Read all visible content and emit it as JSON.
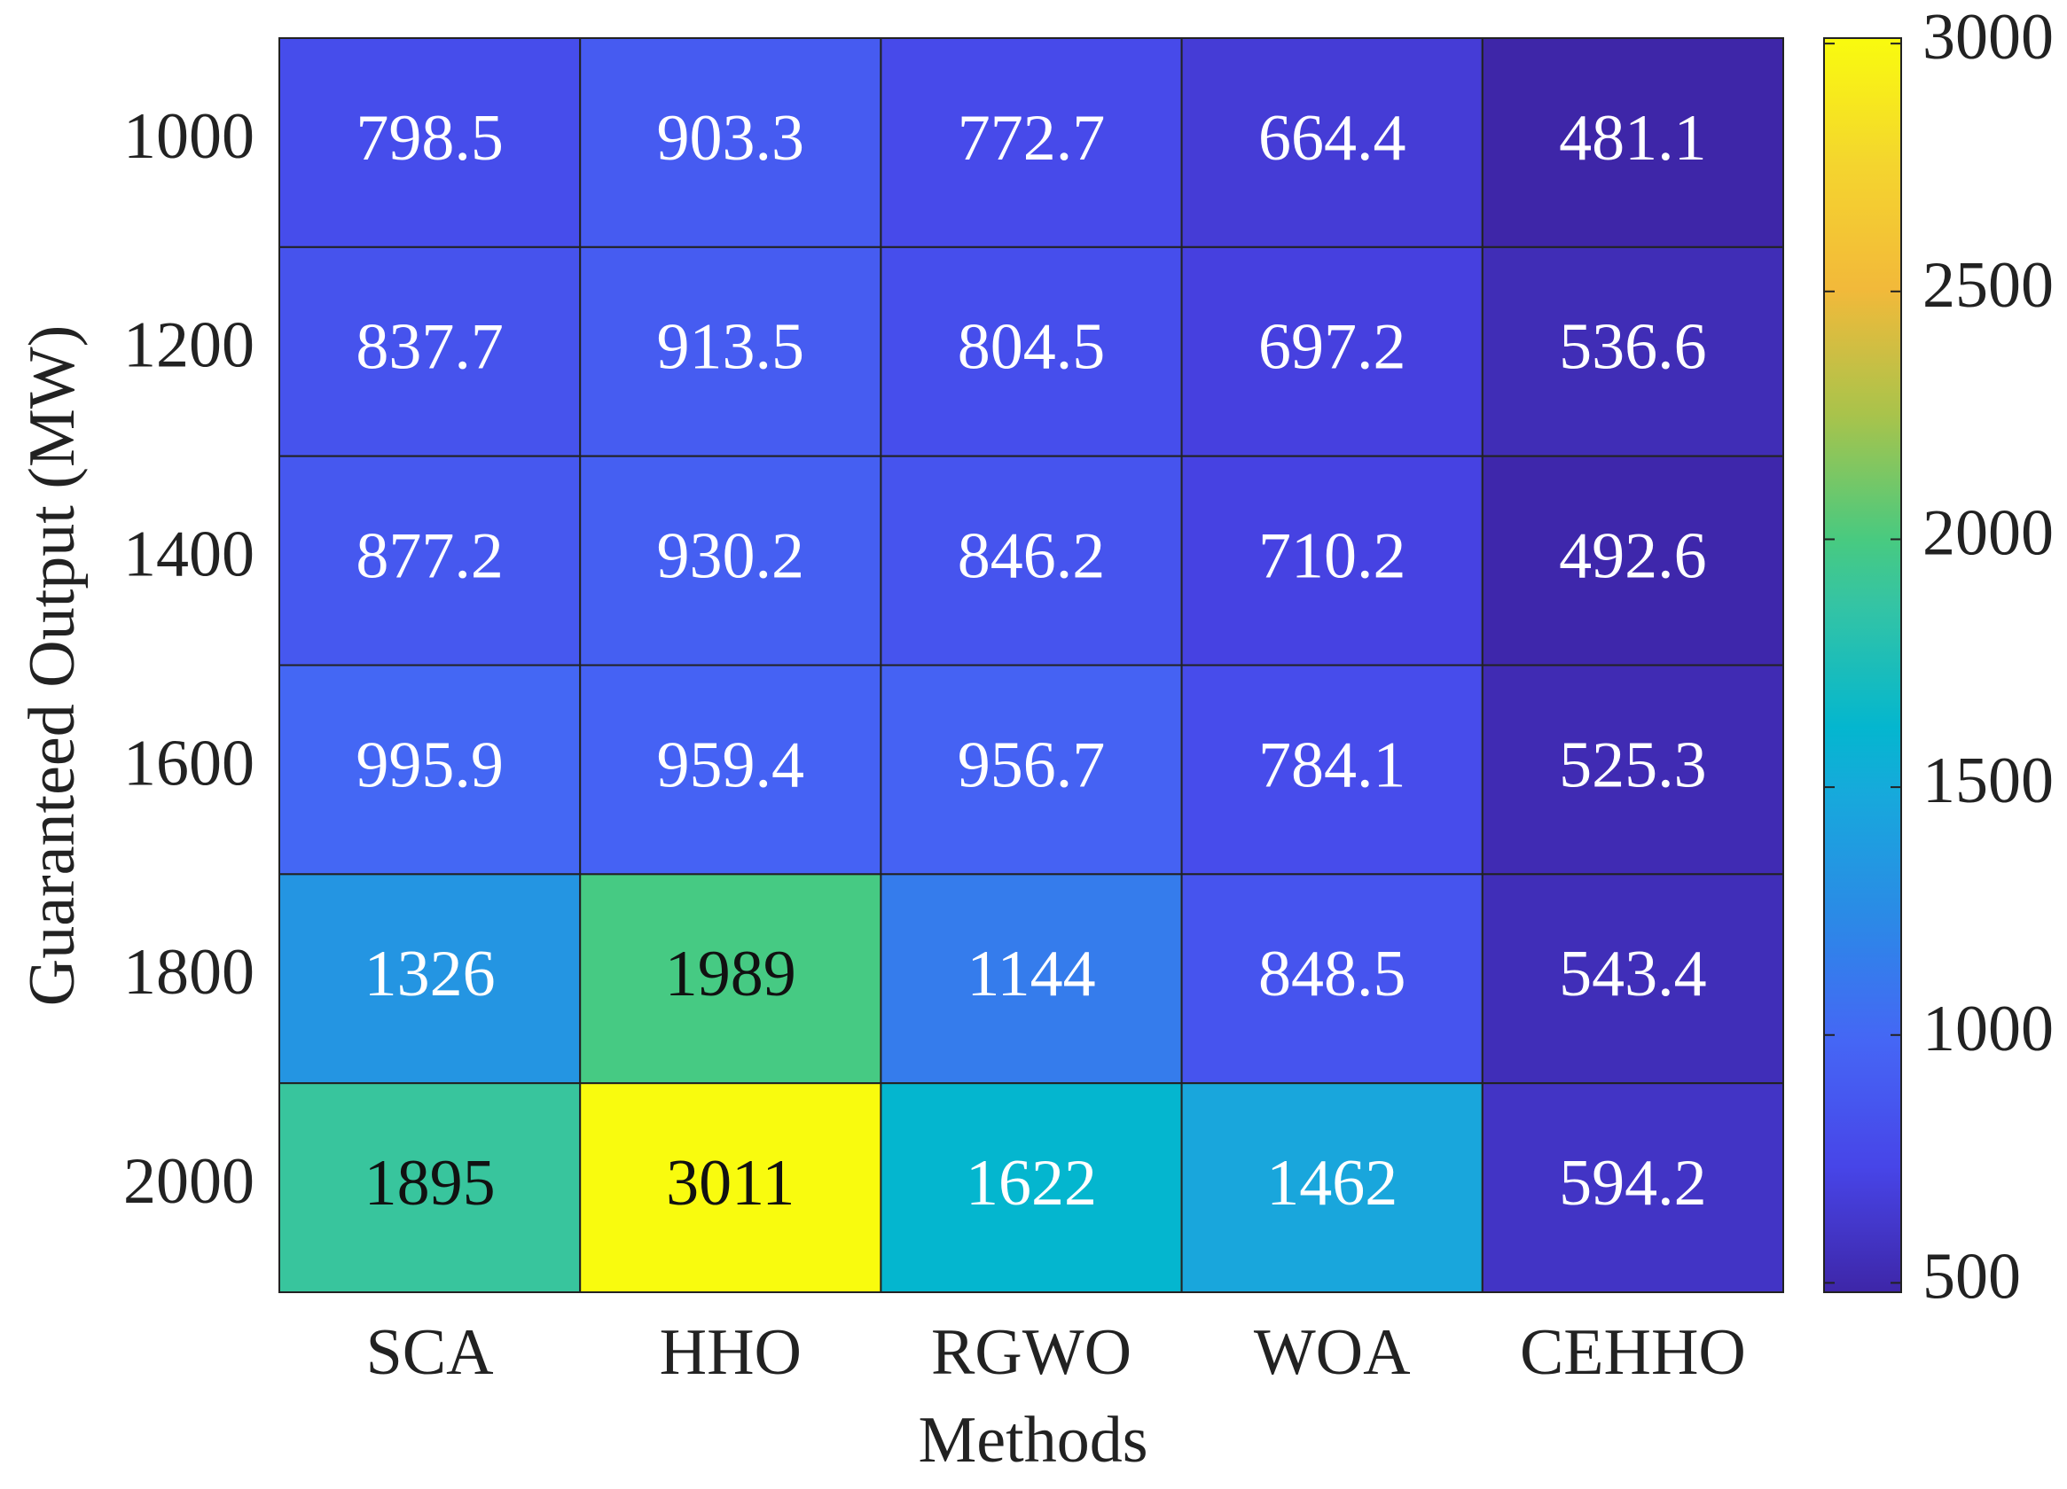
{
  "chart_data": {
    "type": "heatmap",
    "x_label": "Methods",
    "y_label": "Guaranteed Output (MW)",
    "x_categories": [
      "SCA",
      "HHO",
      "RGWO",
      "WOA",
      "CEHHO"
    ],
    "y_categories": [
      "1000",
      "1200",
      "1400",
      "1600",
      "1800",
      "2000"
    ],
    "values": [
      [
        798.5,
        903.3,
        772.7,
        664.4,
        481.1
      ],
      [
        837.7,
        913.5,
        804.5,
        697.2,
        536.6
      ],
      [
        877.2,
        930.2,
        846.2,
        710.2,
        492.6
      ],
      [
        995.9,
        959.4,
        956.7,
        784.1,
        525.3
      ],
      [
        1326,
        1989,
        1144,
        848.5,
        543.4
      ],
      [
        1895,
        3011,
        1622,
        1462,
        594.2
      ]
    ],
    "colormap": "parula",
    "clim": [
      481.1,
      3011
    ],
    "cticks": [
      500,
      1000,
      1500,
      2000,
      2500,
      3000
    ]
  }
}
